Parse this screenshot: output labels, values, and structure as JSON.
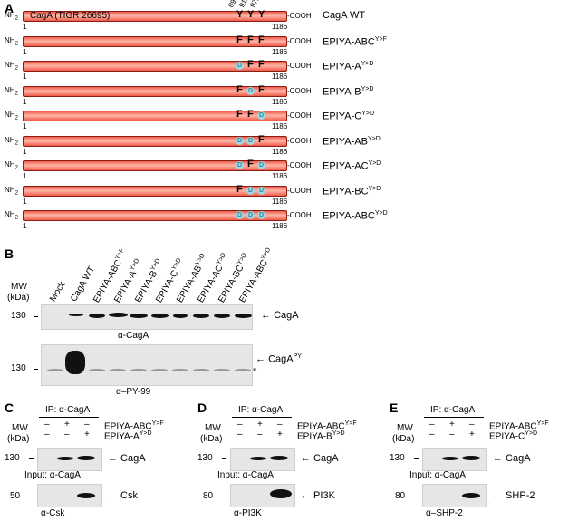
{
  "panel_a": {
    "label": "A",
    "bar_title": "CagA (TIGR 26695)",
    "positions": [
      "899",
      "918",
      "972"
    ],
    "nh2": "NH",
    "nh2_sub": "2",
    "cooh": "-COOH",
    "start": "1",
    "end": "1186",
    "constructs": [
      {
        "name": "CagA WT",
        "sup": "",
        "residues": [
          "Y",
          "Y",
          "Y"
        ]
      },
      {
        "name": "EPIYA-ABC",
        "sup": "Y>F",
        "residues": [
          "F",
          "F",
          "F"
        ]
      },
      {
        "name": "EPIYA-A",
        "sup": "Y>D",
        "residues": [
          "D",
          "F",
          "F"
        ]
      },
      {
        "name": "EPIYA-B",
        "sup": "Y>D",
        "residues": [
          "F",
          "D",
          "F"
        ]
      },
      {
        "name": "EPIYA-C",
        "sup": "Y>D",
        "residues": [
          "F",
          "F",
          "D"
        ]
      },
      {
        "name": "EPIYA-AB",
        "sup": "Y>D",
        "residues": [
          "D",
          "D",
          "F"
        ]
      },
      {
        "name": "EPIYA-AC",
        "sup": "Y>D",
        "residues": [
          "D",
          "F",
          "D"
        ]
      },
      {
        "name": "EPIYA-BC",
        "sup": "Y>D",
        "residues": [
          "F",
          "D",
          "D"
        ]
      },
      {
        "name": "EPIYA-ABC",
        "sup": "Y>D",
        "residues": [
          "D",
          "D",
          "D"
        ]
      }
    ]
  },
  "panel_b": {
    "label": "B",
    "mw_label": "MW",
    "kda_label": "(kDa)",
    "lanes": [
      {
        "name": "Mock",
        "sup": ""
      },
      {
        "name": "CagA WT",
        "sup": ""
      },
      {
        "name": "EPIYA-ABC",
        "sup": "Y>F"
      },
      {
        "name": "EPIYA-A",
        "sup": "Y>D"
      },
      {
        "name": "EPIYA-B",
        "sup": "Y>D"
      },
      {
        "name": "EPIYA-C",
        "sup": "Y>D"
      },
      {
        "name": "EPIYA-AB",
        "sup": "Y>D"
      },
      {
        "name": "EPIYA-AC",
        "sup": "Y>D"
      },
      {
        "name": "EPIYA-BC",
        "sup": "Y>D"
      },
      {
        "name": "EPIYA-ABC",
        "sup": "Y>D"
      }
    ],
    "blot1": {
      "mw": "130",
      "band": "CagA",
      "caption": "α-CagA"
    },
    "blot2": {
      "mw": "130",
      "band": "CagA",
      "band_sup": "PY",
      "asterisk": "*",
      "caption": "α–PY-99"
    }
  },
  "subpanels": [
    {
      "label": "C",
      "ip": "IP: α-CagA",
      "mw_label": "MW",
      "kda_label": "(kDa)",
      "row1": {
        "signs": [
          "–",
          "+",
          "–"
        ],
        "name": "EPIYA-ABC",
        "sup": "Y>F"
      },
      "row2": {
        "signs": [
          "–",
          "–",
          "+"
        ],
        "name": "EPIYA-A",
        "sup": "Y>D"
      },
      "blot1": {
        "mw": "130",
        "band": "CagA"
      },
      "input_label": "Input: α-CagA",
      "blot2": {
        "mw": "50",
        "band": "Csk"
      },
      "caption": "α-Csk"
    },
    {
      "label": "D",
      "ip": "IP: α-CagA",
      "mw_label": "MW",
      "kda_label": "(kDa)",
      "row1": {
        "signs": [
          "–",
          "+",
          "–"
        ],
        "name": "EPIYA-ABC",
        "sup": "Y>F"
      },
      "row2": {
        "signs": [
          "–",
          "–",
          "+"
        ],
        "name": "EPIYA-B",
        "sup": "Y>D"
      },
      "blot1": {
        "mw": "130",
        "band": "CagA"
      },
      "input_label": "Input: α-CagA",
      "blot2": {
        "mw": "80",
        "band": "PI3K"
      },
      "caption": "α-PI3K"
    },
    {
      "label": "E",
      "ip": "IP: α-CagA",
      "mw_label": "MW",
      "kda_label": "(kDa)",
      "row1": {
        "signs": [
          "–",
          "+",
          "–"
        ],
        "name": "EPIYA-ABC",
        "sup": "Y>F"
      },
      "row2": {
        "signs": [
          "–",
          "–",
          "+"
        ],
        "name": "EPIYA-C",
        "sup": "Y>D"
      },
      "blot1": {
        "mw": "130",
        "band": "CagA"
      },
      "input_label": "Input: α-CagA",
      "blot2": {
        "mw": "80",
        "band": "SHP-2"
      },
      "caption": "α–SHP-2"
    }
  ],
  "colors": {
    "bar": "#f05a48",
    "bar_highlight": "#ffb7a8",
    "bar_border": "#8a1d14",
    "mutation_dot": "#9fd8e0",
    "gel": "#e6e6e6"
  }
}
